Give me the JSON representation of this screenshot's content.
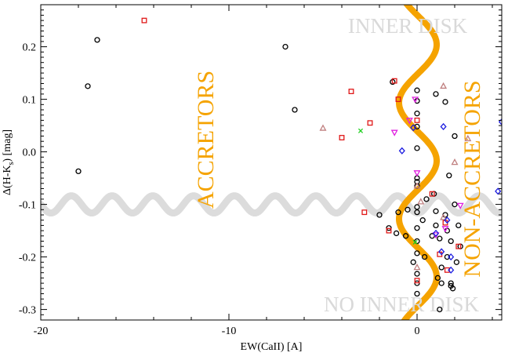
{
  "chart_data": {
    "type": "scatter",
    "xlabel": "EW(CaII) [A]",
    "ylabel_main": "Δ(H-K",
    "ylabel_sub": "s",
    "ylabel_tail": ") [mag]",
    "xlim": [
      -20,
      4.5
    ],
    "ylim": [
      -0.32,
      0.28
    ],
    "xticks": [
      {
        "value": -20,
        "label": "-20"
      },
      {
        "value": -10,
        "label": "-10"
      },
      {
        "value": 0,
        "label": "0"
      }
    ],
    "yticks": [
      {
        "value": 0.2,
        "label": "0.2"
      },
      {
        "value": 0.1,
        "label": "0.1"
      },
      {
        "value": 0.0,
        "label": "0.0"
      },
      {
        "value": -0.1,
        "label": "-0.1"
      },
      {
        "value": -0.2,
        "label": "-0.2"
      },
      {
        "value": -0.3,
        "label": "-0.3"
      }
    ],
    "annotations": {
      "inner_disk": "INNER DISK",
      "no_inner_disk": "NO INNER DISK",
      "accretors": "ACCRETORS",
      "non_accretors": "NON-ACCRETORS"
    },
    "boundaries": {
      "horizontal_y": -0.1,
      "vertical_x": 0.0,
      "colors": {
        "horizontal": "#dcdcdc",
        "vertical": "#f5a300"
      }
    },
    "series": [
      {
        "marker": "circle",
        "color": "#000000",
        "points": [
          [
            -17.0,
            0.213
          ],
          [
            -17.5,
            0.125
          ],
          [
            -18.0,
            -0.037
          ],
          [
            -7.0,
            0.2
          ],
          [
            -6.5,
            0.08
          ],
          [
            -1.3,
            0.133
          ],
          [
            0.0,
            0.117
          ],
          [
            0.0,
            0.097
          ],
          [
            0.0,
            0.073
          ],
          [
            0.0,
            0.048
          ],
          [
            0.0,
            0.007
          ],
          [
            0.0,
            -0.05
          ],
          [
            0.0,
            -0.057
          ],
          [
            0.0,
            -0.065
          ],
          [
            0.0,
            -0.105
          ],
          [
            0.0,
            -0.115
          ],
          [
            0.0,
            -0.145
          ],
          [
            0.0,
            -0.17
          ],
          [
            0.0,
            -0.193
          ],
          [
            0.0,
            -0.232
          ],
          [
            0.0,
            -0.25
          ],
          [
            0.0,
            -0.27
          ],
          [
            1.0,
            0.11
          ],
          [
            1.0,
            -0.113
          ],
          [
            1.0,
            -0.14
          ],
          [
            0.8,
            -0.16
          ],
          [
            1.2,
            -0.165
          ],
          [
            1.5,
            0.095
          ],
          [
            1.7,
            -0.045
          ],
          [
            2.0,
            0.03
          ],
          [
            1.5,
            -0.12
          ],
          [
            1.6,
            -0.15
          ],
          [
            1.8,
            -0.17
          ],
          [
            2.0,
            -0.1
          ],
          [
            2.1,
            -0.21
          ],
          [
            1.3,
            -0.22
          ],
          [
            1.6,
            -0.2
          ],
          [
            1.3,
            -0.25
          ],
          [
            1.8,
            -0.255
          ],
          [
            1.2,
            -0.3
          ],
          [
            -0.5,
            -0.11
          ],
          [
            -1.0,
            -0.115
          ],
          [
            -1.1,
            -0.155
          ],
          [
            -0.6,
            -0.16
          ],
          [
            -1.5,
            -0.145
          ],
          [
            -2.0,
            -0.12
          ],
          [
            0.5,
            -0.09
          ],
          [
            0.9,
            -0.08
          ],
          [
            0.3,
            -0.13
          ],
          [
            1.8,
            -0.25
          ],
          [
            2.2,
            -0.14
          ],
          [
            0.4,
            -0.2
          ],
          [
            1.1,
            -0.24
          ],
          [
            -0.2,
            -0.21
          ],
          [
            2.3,
            -0.18
          ],
          [
            1.9,
            -0.26
          ]
        ]
      },
      {
        "marker": "square",
        "color": "#e01818",
        "points": [
          [
            -14.5,
            0.25
          ],
          [
            -3.5,
            0.115
          ],
          [
            -4.0,
            0.027
          ],
          [
            -2.5,
            0.055
          ],
          [
            -1.0,
            0.1
          ],
          [
            -2.8,
            -0.115
          ],
          [
            -1.5,
            -0.15
          ],
          [
            0.0,
            0.06
          ],
          [
            -1.2,
            0.135
          ],
          [
            0.8,
            -0.08
          ],
          [
            1.5,
            -0.135
          ],
          [
            0.0,
            -0.245
          ],
          [
            1.6,
            -0.225
          ],
          [
            2.2,
            -0.18
          ],
          [
            1.2,
            -0.195
          ]
        ]
      },
      {
        "marker": "triangle",
        "color": "#c08080",
        "points": [
          [
            -5.0,
            0.045
          ],
          [
            1.4,
            0.125
          ],
          [
            2.0,
            -0.02
          ],
          [
            2.7,
            0.025
          ],
          [
            0.0,
            -0.22
          ],
          [
            1.4,
            -0.125
          ],
          [
            0.0,
            -0.065
          ],
          [
            0.2,
            -0.095
          ]
        ]
      },
      {
        "marker": "triangle-down",
        "color": "#e020e0",
        "points": [
          [
            -0.4,
            0.06
          ],
          [
            -1.2,
            0.037
          ],
          [
            0.0,
            -0.04
          ],
          [
            1.0,
            -0.158
          ],
          [
            2.3,
            -0.102
          ],
          [
            1.5,
            -0.146
          ],
          [
            -0.1,
            0.1
          ]
        ]
      },
      {
        "marker": "diamond",
        "color": "#1c1ce0",
        "points": [
          [
            -0.2,
            0.046
          ],
          [
            1.4,
            0.048
          ],
          [
            -0.8,
            0.002
          ],
          [
            4.5,
            0.057
          ],
          [
            4.3,
            -0.075
          ],
          [
            1.3,
            -0.19
          ],
          [
            1.8,
            -0.225
          ],
          [
            1.6,
            -0.13
          ],
          [
            1.0,
            -0.155
          ],
          [
            1.8,
            -0.2
          ]
        ]
      },
      {
        "marker": "cross",
        "color": "#20d020",
        "points": [
          [
            -3.0,
            0.04
          ],
          [
            -0.1,
            -0.172
          ]
        ]
      }
    ]
  }
}
